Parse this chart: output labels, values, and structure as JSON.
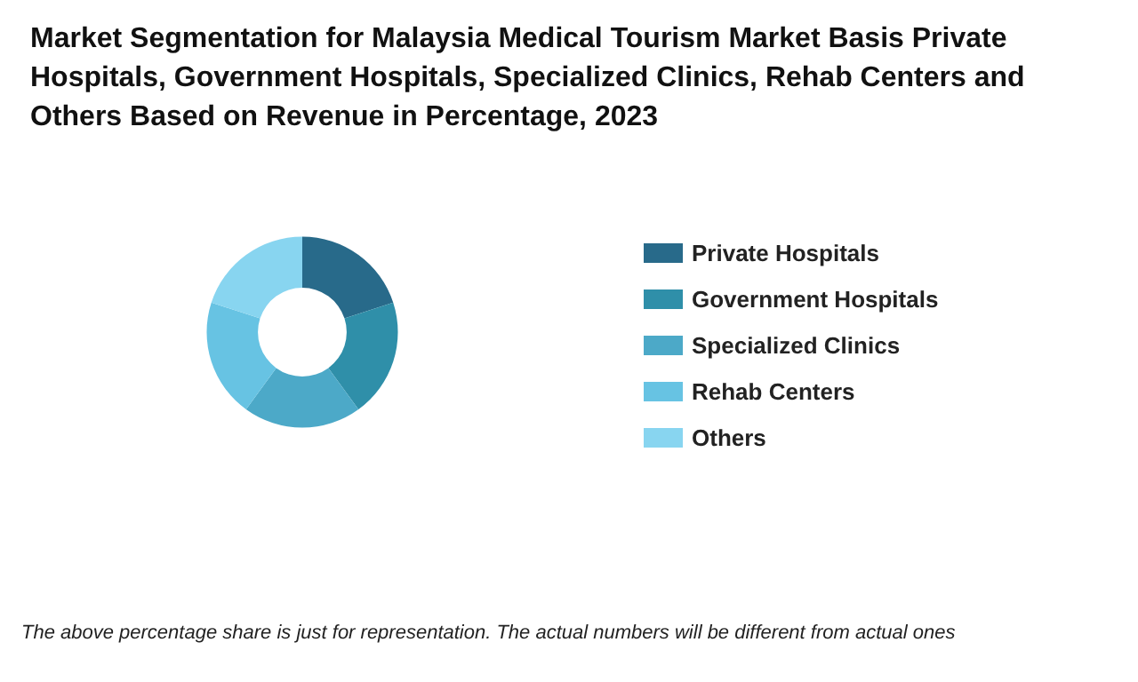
{
  "chart_data": {
    "type": "donut",
    "title": "Market Segmentation for Malaysia Medical Tourism Market Basis Private Hospitals, Government Hospitals, Specialized Clinics, Rehab Centers and Others Based on Revenue in Percentage, 2023",
    "categories": [
      "Private Hospitals",
      "Government Hospitals",
      "Specialized Clinics",
      "Rehab Centers",
      "Others"
    ],
    "values": [
      20,
      20,
      20,
      20,
      20
    ],
    "colors": [
      "#286a8a",
      "#2f8fa9",
      "#4ca9c8",
      "#67c3e3",
      "#88d5f0"
    ],
    "legend": "right",
    "annotations": [
      "The above percentage share is just for representation. The actual numbers will be different from actual ones"
    ]
  }
}
